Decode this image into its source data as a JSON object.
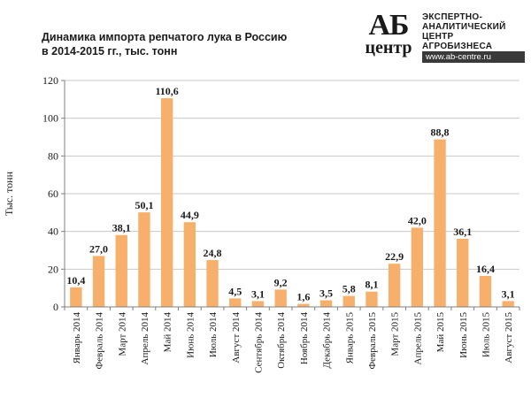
{
  "header": {
    "title_line1": "Динамика импорта репчатого лука в Россию",
    "title_line2": "в 2014-2015 гг., тыс. тонн"
  },
  "logo": {
    "mark_top": "АБ",
    "mark_bottom": "центр",
    "lines": [
      "ЭКСПЕРТНО-",
      "АНАЛИТИЧЕСКИЙ",
      "ЦЕНТР",
      "АГРОБИЗНЕСА"
    ],
    "url": "www.ab-centre.ru"
  },
  "colors": {
    "bar": "#F6B06B",
    "grid": "#C8C8C8",
    "axis": "#808080",
    "text": "#1a1a1a"
  },
  "chart_data": {
    "type": "bar",
    "title": "Динамика импорта репчатого лука в Россию в 2014-2015 гг., тыс. тонн",
    "ylabel": "Тыс. тонн",
    "xlabel": "",
    "ylim": [
      0,
      120
    ],
    "yticks": [
      0,
      20,
      40,
      60,
      80,
      100,
      120
    ],
    "grid": true,
    "categories": [
      "Январь 2014",
      "Февраль 2014",
      "Март 2014",
      "Апрель 2014",
      "Май 2014",
      "Июнь 2014",
      "Июль 2014",
      "Август 2014",
      "Сентябрь 2014",
      "Октябрь 2014",
      "Ноябрь 2014",
      "Декабрь 2014",
      "Январь 2015",
      "Февраль 2015",
      "Март 2015",
      "Апрель 2015",
      "Май 2015",
      "Июнь 2015",
      "Июль 2015",
      "Август 2015"
    ],
    "values": [
      10.4,
      27.0,
      38.1,
      50.1,
      110.6,
      44.9,
      24.8,
      4.5,
      3.1,
      9.2,
      1.6,
      3.5,
      5.8,
      8.1,
      22.9,
      42.0,
      88.8,
      36.1,
      16.4,
      3.1
    ],
    "labels": [
      "10,4",
      "27,0",
      "38,1",
      "50,1",
      "110,6",
      "44,9",
      "24,8",
      "4,5",
      "3,1",
      "9,2",
      "1,6",
      "3,5",
      "5,8",
      "8,1",
      "22,9",
      "42,0",
      "88,8",
      "36,1",
      "16,4",
      "3,1"
    ]
  }
}
